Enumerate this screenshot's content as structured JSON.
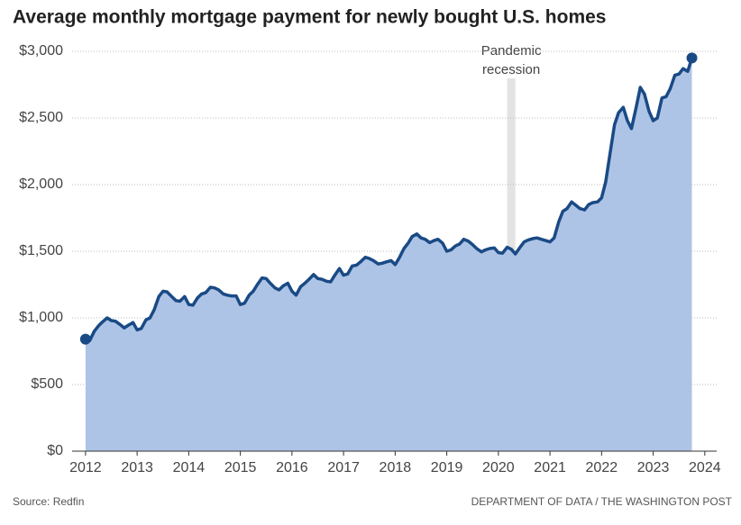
{
  "chart_data": {
    "type": "area",
    "title": "Average monthly mortgage payment for newly bought U.S. homes",
    "source": "Source: Redfin",
    "credit": "DEPARTMENT OF DATA / THE WASHINGTON POST",
    "recession": {
      "start": 2020.17,
      "end": 2020.33,
      "label": [
        "Pandemic",
        "recession"
      ]
    },
    "series": [
      {
        "name": "Average monthly mortgage payment",
        "color": "#1a4a85",
        "fill": "#aec4e6",
        "x": [
          2012.0,
          2012.08,
          2012.17,
          2012.25,
          2012.33,
          2012.42,
          2012.5,
          2012.58,
          2012.67,
          2012.75,
          2012.83,
          2012.92,
          2013.0,
          2013.08,
          2013.17,
          2013.25,
          2013.33,
          2013.42,
          2013.5,
          2013.58,
          2013.67,
          2013.75,
          2013.83,
          2013.92,
          2014.0,
          2014.08,
          2014.17,
          2014.25,
          2014.33,
          2014.42,
          2014.5,
          2014.58,
          2014.67,
          2014.75,
          2014.83,
          2014.92,
          2015.0,
          2015.08,
          2015.17,
          2015.25,
          2015.33,
          2015.42,
          2015.5,
          2015.58,
          2015.67,
          2015.75,
          2015.83,
          2015.92,
          2016.0,
          2016.08,
          2016.17,
          2016.25,
          2016.33,
          2016.42,
          2016.5,
          2016.58,
          2016.67,
          2016.75,
          2016.83,
          2016.92,
          2017.0,
          2017.08,
          2017.17,
          2017.25,
          2017.33,
          2017.42,
          2017.5,
          2017.58,
          2017.67,
          2017.75,
          2017.83,
          2017.92,
          2018.0,
          2018.08,
          2018.17,
          2018.25,
          2018.33,
          2018.42,
          2018.5,
          2018.58,
          2018.67,
          2018.75,
          2018.83,
          2018.92,
          2019.0,
          2019.08,
          2019.17,
          2019.25,
          2019.33,
          2019.42,
          2019.5,
          2019.58,
          2019.67,
          2019.75,
          2019.83,
          2019.92,
          2020.0,
          2020.08,
          2020.17,
          2020.25,
          2020.33,
          2020.42,
          2020.5,
          2020.58,
          2020.67,
          2020.75,
          2020.83,
          2020.92,
          2021.0,
          2021.08,
          2021.17,
          2021.25,
          2021.33,
          2021.42,
          2021.5,
          2021.58,
          2021.67,
          2021.75,
          2021.83,
          2021.92,
          2022.0,
          2022.08,
          2022.17,
          2022.25,
          2022.33,
          2022.42,
          2022.5,
          2022.58,
          2022.67,
          2022.75,
          2022.83,
          2022.92,
          2023.0,
          2023.08,
          2023.17,
          2023.25,
          2023.33,
          2023.42,
          2023.5,
          2023.58,
          2023.67,
          2023.75
        ],
        "values": [
          840,
          830,
          900,
          940,
          970,
          1000,
          980,
          975,
          950,
          925,
          945,
          965,
          910,
          920,
          985,
          1000,
          1060,
          1160,
          1200,
          1195,
          1160,
          1130,
          1125,
          1160,
          1100,
          1095,
          1150,
          1180,
          1190,
          1230,
          1225,
          1210,
          1180,
          1170,
          1165,
          1165,
          1100,
          1110,
          1170,
          1200,
          1250,
          1300,
          1295,
          1260,
          1225,
          1210,
          1240,
          1260,
          1200,
          1170,
          1235,
          1260,
          1290,
          1325,
          1295,
          1290,
          1275,
          1270,
          1320,
          1370,
          1320,
          1330,
          1390,
          1395,
          1420,
          1455,
          1445,
          1430,
          1405,
          1410,
          1420,
          1430,
          1400,
          1450,
          1520,
          1560,
          1610,
          1630,
          1600,
          1590,
          1565,
          1580,
          1590,
          1560,
          1500,
          1510,
          1540,
          1555,
          1590,
          1575,
          1550,
          1520,
          1495,
          1510,
          1520,
          1525,
          1490,
          1485,
          1530,
          1515,
          1480,
          1530,
          1570,
          1585,
          1595,
          1600,
          1590,
          1580,
          1570,
          1600,
          1720,
          1800,
          1820,
          1870,
          1845,
          1820,
          1810,
          1850,
          1865,
          1870,
          1900,
          2020,
          2250,
          2450,
          2540,
          2580,
          2480,
          2420,
          2580,
          2730,
          2680,
          2550,
          2480,
          2500,
          2650,
          2660,
          2720,
          2820,
          2830,
          2870,
          2850,
          2950
        ]
      }
    ],
    "xlim": [
      2011.74,
      2024.23
    ],
    "xticks": [
      2012,
      2013,
      2014,
      2015,
      2016,
      2017,
      2018,
      2019,
      2020,
      2021,
      2022,
      2023,
      2024
    ],
    "ylim": [
      0,
      3000
    ],
    "yticks": [
      {
        "value": 0,
        "label": "$0"
      },
      {
        "value": 500,
        "label": "$500"
      },
      {
        "value": 1000,
        "label": "$1,000"
      },
      {
        "value": 1500,
        "label": "$1,500"
      },
      {
        "value": 2000,
        "label": "$2,000"
      },
      {
        "value": 2500,
        "label": "$2,500"
      },
      {
        "value": 3000,
        "label": "$3,000"
      }
    ],
    "grid": true
  }
}
